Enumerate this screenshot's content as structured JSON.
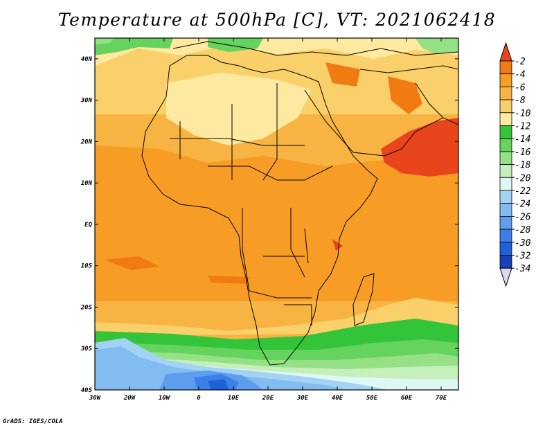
{
  "title": "Temperature at 500hPa [C], VT: 2021062418",
  "credit": "GrADS: IGES/COLA",
  "map": {
    "lon_ticks": [
      "30W",
      "20W",
      "10W",
      "0",
      "10E",
      "20E",
      "30E",
      "40E",
      "50E",
      "60E",
      "70E"
    ],
    "lat_ticks": [
      "40N",
      "30N",
      "20N",
      "10N",
      "EQ",
      "10S",
      "20S",
      "30S",
      "40S"
    ],
    "lon_range": [
      -30,
      75
    ],
    "lat_range": [
      -40,
      45
    ]
  },
  "colorbar": {
    "labels": [
      "-2",
      "-4",
      "-6",
      "-8",
      "-10",
      "-12",
      "-14",
      "-16",
      "-18",
      "-20",
      "-22",
      "-24",
      "-26",
      "-28",
      "-30",
      "-32",
      "-34"
    ],
    "colors": [
      "#e8451c",
      "#f27a12",
      "#f79d25",
      "#f7b442",
      "#fad06a",
      "#fdeaa0",
      "#33c43a",
      "#65d35e",
      "#96e186",
      "#c5f0bb",
      "#dff7f5",
      "#a3d3f4",
      "#82bcf0",
      "#5c9eed",
      "#3c7fe8",
      "#2060d8",
      "#1443b8",
      "#0b2484"
    ]
  }
}
